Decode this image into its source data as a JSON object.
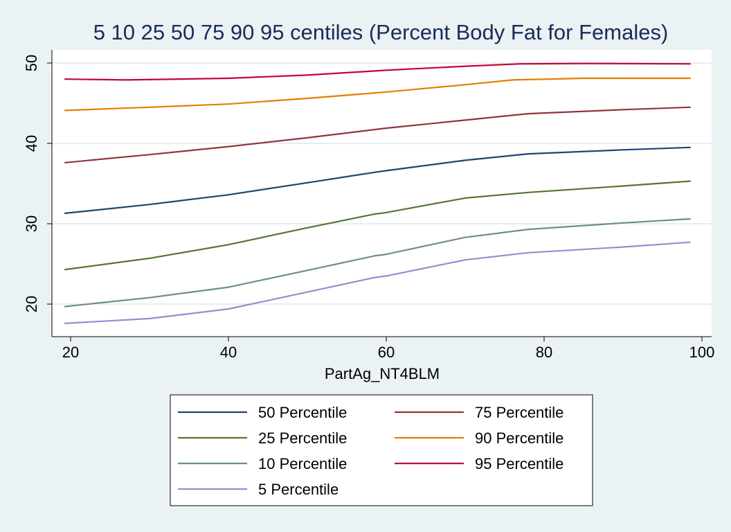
{
  "chart_data": {
    "type": "line",
    "title": "5 10 25 50 75 90 95 centiles (Percent Body Fat for Females)",
    "xlabel": "PartAg_NT4BLM",
    "ylabel": "",
    "xlim": [
      19.3,
      98.5
    ],
    "ylim": [
      16.5,
      51.5
    ],
    "xticks": [
      20,
      40,
      60,
      80,
      100
    ],
    "yticks": [
      20,
      30,
      40,
      50
    ],
    "grid": true,
    "legend_position": "bottom",
    "series": [
      {
        "name": "50 Percentile",
        "color": "#1a476f",
        "x": [
          19.3,
          30,
          40,
          50,
          58.5,
          60,
          70,
          78,
          90,
          98.5
        ],
        "y": [
          31.3,
          32.4,
          33.6,
          35.1,
          36.4,
          36.6,
          37.9,
          38.7,
          39.2,
          39.5
        ]
      },
      {
        "name": "75 Percentile",
        "color": "#90353b",
        "x": [
          19.3,
          30,
          40,
          50,
          60,
          70,
          78,
          90,
          98.5
        ],
        "y": [
          37.6,
          38.6,
          39.6,
          40.7,
          41.9,
          42.9,
          43.7,
          44.2,
          44.5
        ]
      },
      {
        "name": "25 Percentile",
        "color": "#55752f",
        "x": [
          19.3,
          30,
          40,
          50,
          58.5,
          60,
          70,
          78,
          90,
          98.5
        ],
        "y": [
          24.3,
          25.7,
          27.4,
          29.5,
          31.2,
          31.4,
          33.2,
          33.9,
          34.7,
          35.3
        ]
      },
      {
        "name": "90 Percentile",
        "color": "#e37e00",
        "x": [
          19.3,
          30,
          40,
          50,
          60,
          70,
          76,
          85,
          98.5
        ],
        "y": [
          44.1,
          44.5,
          44.9,
          45.6,
          46.4,
          47.3,
          47.9,
          48.1,
          48.1
        ]
      },
      {
        "name": "10 Percentile",
        "color": "#6e8e84",
        "x": [
          19.3,
          30,
          40,
          50,
          58.5,
          60,
          70,
          78,
          90,
          98.5
        ],
        "y": [
          19.7,
          20.8,
          22.1,
          24.2,
          26.0,
          26.2,
          28.3,
          29.3,
          30.1,
          30.6
        ]
      },
      {
        "name": "95 Percentile",
        "color": "#c10534",
        "x": [
          19.3,
          27,
          40,
          50,
          60,
          70,
          77,
          85,
          98.5
        ],
        "y": [
          48.0,
          47.9,
          48.1,
          48.5,
          49.1,
          49.6,
          49.9,
          49.95,
          49.9
        ]
      },
      {
        "name": "5 Percentile",
        "color": "#938dd2",
        "x": [
          19.3,
          30,
          40,
          50,
          58.5,
          60,
          70,
          78,
          90,
          98.5
        ],
        "y": [
          17.6,
          18.2,
          19.4,
          21.5,
          23.3,
          23.5,
          25.5,
          26.4,
          27.1,
          27.7
        ]
      }
    ]
  }
}
